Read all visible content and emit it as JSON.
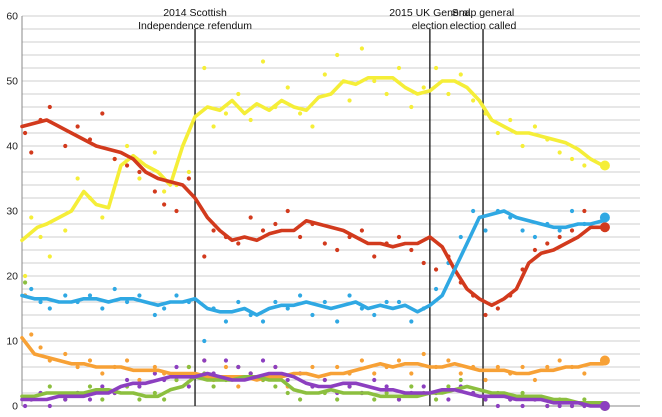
{
  "chart_data": {
    "type": "line",
    "title": "",
    "xlabel": "",
    "ylabel": "",
    "ylim": [
      0,
      60
    ],
    "xlim": [
      0,
      100
    ],
    "yticks": [
      0,
      10,
      20,
      30,
      40,
      50,
      60
    ],
    "grid": true,
    "legend": "none",
    "annotations": [
      {
        "lines": [
          "2014 Scottish",
          "Independence refendum"
        ],
        "x": 28.0
      },
      {
        "lines": [
          "2015 UK General",
          "election"
        ],
        "x": 66.0
      },
      {
        "lines": [
          "Snap general",
          "election called"
        ],
        "x": 74.6
      }
    ],
    "series": [
      {
        "color": "#f5ee38",
        "x": [
          0,
          2.5,
          4,
          6,
          8,
          10,
          12,
          14,
          16,
          18,
          20,
          22,
          24,
          26,
          28,
          30,
          32,
          34,
          36,
          38,
          40,
          42,
          44,
          46,
          48,
          50,
          52,
          54,
          56,
          58,
          60,
          62,
          64,
          66,
          68,
          70,
          72,
          74,
          76,
          78,
          80,
          82,
          84,
          86,
          88,
          90,
          92,
          94
        ],
        "values": [
          25.5,
          27.5,
          28.0,
          29.0,
          30.0,
          33.0,
          31.0,
          30.5,
          37.0,
          38.5,
          37.0,
          36.0,
          34.0,
          40.0,
          44.5,
          46.0,
          45.5,
          47.0,
          45.0,
          46.5,
          45.5,
          47.0,
          46.0,
          45.5,
          47.5,
          48.0,
          50.0,
          49.5,
          50.5,
          50.5,
          50.5,
          49.0,
          48.0,
          48.5,
          50.0,
          50.0,
          49.0,
          47.0,
          44.0,
          43.0,
          42.0,
          42.0,
          41.5,
          41.0,
          40.5,
          39.5,
          38.0,
          37.0
        ],
        "end_value": 37
      },
      {
        "color": "#d23a1d",
        "x": [
          0,
          2,
          4,
          6,
          8,
          10,
          12,
          14,
          16,
          18,
          20,
          22,
          24,
          26,
          28,
          30,
          32,
          34,
          36,
          38,
          40,
          42,
          44,
          46,
          48,
          50,
          52,
          54,
          56,
          58,
          60,
          62,
          64,
          66,
          68,
          70,
          72,
          74,
          76,
          78,
          80,
          82,
          84,
          86,
          88,
          90,
          92,
          94
        ],
        "values": [
          43.0,
          43.5,
          44.0,
          43.0,
          42.0,
          41.0,
          40.0,
          39.5,
          39.0,
          38.0,
          36.0,
          35.0,
          34.5,
          34.0,
          32.0,
          29.0,
          27.0,
          25.5,
          26.0,
          25.5,
          26.5,
          27.0,
          27.0,
          28.5,
          28.0,
          27.5,
          27.0,
          26.0,
          25.0,
          25.0,
          24.5,
          25.0,
          25.0,
          26.0,
          24.5,
          21.0,
          18.0,
          16.5,
          15.5,
          16.5,
          18.0,
          22.0,
          23.5,
          24.0,
          25.0,
          26.0,
          27.5,
          27.5
        ],
        "end_value": 27.5
      },
      {
        "color": "#2fa8e3",
        "x": [
          0,
          2,
          4,
          6,
          8,
          10,
          12,
          14,
          16,
          18,
          20,
          22,
          24,
          26,
          28,
          30,
          32,
          34,
          36,
          38,
          40,
          42,
          44,
          46,
          48,
          50,
          52,
          54,
          56,
          58,
          60,
          62,
          64,
          66,
          68,
          70,
          72,
          74,
          76,
          78,
          80,
          82,
          84,
          86,
          88,
          90,
          92,
          94
        ],
        "values": [
          17.0,
          16.5,
          16.5,
          16.0,
          16.0,
          16.5,
          16.5,
          16.0,
          16.5,
          16.5,
          16.0,
          15.5,
          16.0,
          16.0,
          16.5,
          15.0,
          14.5,
          14.5,
          15.0,
          14.0,
          15.0,
          15.5,
          15.5,
          16.0,
          15.5,
          15.0,
          15.5,
          16.0,
          15.0,
          15.5,
          15.0,
          15.5,
          14.5,
          15.5,
          17.0,
          21.0,
          25.0,
          29.0,
          29.5,
          30.0,
          29.0,
          28.5,
          28.0,
          27.5,
          27.5,
          28.0,
          28.0,
          28.5
        ],
        "end_value": 29
      },
      {
        "color": "#f7a136",
        "x": [
          0,
          2,
          4,
          6,
          8,
          10,
          12,
          14,
          16,
          18,
          20,
          22,
          24,
          26,
          28,
          30,
          32,
          34,
          36,
          38,
          40,
          42,
          44,
          46,
          48,
          50,
          52,
          54,
          56,
          58,
          60,
          62,
          64,
          66,
          68,
          70,
          72,
          74,
          76,
          78,
          80,
          82,
          84,
          86,
          88,
          90,
          92,
          94
        ],
        "values": [
          10.5,
          8.0,
          7.5,
          7.0,
          6.5,
          6.5,
          6.0,
          6.0,
          6.0,
          5.5,
          5.5,
          5.5,
          5.0,
          5.0,
          5.0,
          4.5,
          4.5,
          4.5,
          4.5,
          4.0,
          4.5,
          4.5,
          5.0,
          5.0,
          4.5,
          5.0,
          5.0,
          5.5,
          6.0,
          6.5,
          6.0,
          6.5,
          6.5,
          6.0,
          6.0,
          6.5,
          6.0,
          5.5,
          5.5,
          5.5,
          5.0,
          5.0,
          5.5,
          5.5,
          6.0,
          6.0,
          6.5,
          6.5
        ],
        "end_value": 7
      },
      {
        "color": "#8cbf3f",
        "x": [
          0,
          2,
          4,
          6,
          8,
          10,
          12,
          14,
          16,
          18,
          20,
          22,
          24,
          26,
          28,
          30,
          32,
          34,
          36,
          38,
          40,
          42,
          44,
          46,
          48,
          50,
          52,
          54,
          56,
          58,
          60,
          62,
          64,
          66,
          68,
          70,
          72,
          74,
          76,
          78,
          80,
          82,
          84,
          86,
          88,
          90,
          92,
          94
        ],
        "values": [
          1.5,
          1.5,
          2.0,
          2.0,
          2.0,
          2.0,
          2.5,
          2.5,
          2.0,
          2.0,
          1.5,
          1.5,
          2.5,
          3.0,
          4.5,
          4.0,
          4.0,
          4.0,
          4.5,
          4.5,
          4.0,
          4.0,
          2.5,
          2.0,
          2.0,
          2.5,
          2.0,
          2.0,
          2.0,
          1.5,
          1.5,
          1.5,
          1.5,
          2.0,
          2.0,
          2.5,
          3.0,
          2.5,
          2.0,
          2.0,
          1.5,
          1.5,
          1.5,
          1.0,
          1.0,
          0.5,
          0.5,
          0.5
        ],
        "end_value": 0
      },
      {
        "color": "#8c3fc0",
        "x": [
          0,
          2,
          4,
          6,
          8,
          10,
          12,
          14,
          16,
          18,
          20,
          22,
          24,
          26,
          28,
          30,
          32,
          34,
          36,
          38,
          40,
          42,
          44,
          46,
          48,
          50,
          52,
          54,
          56,
          58,
          60,
          62,
          64,
          66,
          68,
          70,
          72,
          74,
          76,
          78,
          80,
          82,
          84,
          86,
          88,
          90,
          92,
          94
        ],
        "values": [
          1.0,
          1.0,
          1.0,
          1.5,
          1.5,
          1.5,
          2.0,
          2.0,
          3.0,
          3.5,
          3.5,
          4.0,
          4.5,
          4.5,
          4.5,
          5.0,
          4.5,
          4.0,
          4.0,
          4.5,
          5.0,
          5.0,
          4.5,
          3.5,
          3.0,
          3.0,
          3.5,
          3.5,
          3.0,
          2.5,
          2.5,
          2.0,
          2.0,
          2.0,
          2.5,
          2.5,
          2.0,
          1.5,
          1.5,
          1.5,
          1.0,
          1.0,
          1.0,
          0.5,
          0.5,
          0.5,
          0.0,
          0.0
        ],
        "end_value": 0
      }
    ],
    "scatter": [
      {
        "color": "#f5ee38",
        "x": [
          0.5,
          1.5,
          3,
          4.5,
          7,
          9,
          11,
          13,
          15,
          17,
          19,
          21.5,
          23,
          25,
          27,
          29.5,
          31,
          33,
          35,
          37,
          39,
          41,
          43,
          45,
          47,
          49,
          51,
          53,
          55,
          57,
          59,
          61,
          63,
          65,
          67,
          69,
          71,
          73,
          75,
          77,
          79,
          81,
          83,
          85,
          87,
          89,
          91
        ],
        "values": [
          20,
          29,
          26,
          23,
          27,
          35,
          32,
          29,
          38,
          40,
          35,
          39,
          33,
          34,
          36,
          52,
          43,
          45,
          48,
          44,
          53,
          46,
          49,
          45,
          43,
          51,
          54,
          47,
          55,
          50,
          48,
          52,
          46,
          49,
          52,
          48,
          51,
          47,
          45,
          42,
          44,
          40,
          43,
          41,
          39,
          38,
          37
        ]
      },
      {
        "color": "#d23a1d",
        "x": [
          0.5,
          1.5,
          3,
          4.5,
          7,
          9,
          11,
          13,
          15,
          17,
          19,
          21.5,
          23,
          25,
          27,
          29.5,
          31,
          33,
          35,
          37,
          39,
          41,
          43,
          45,
          47,
          49,
          51,
          53,
          55,
          57,
          59,
          61,
          63,
          65,
          67,
          69,
          71,
          73,
          75,
          77,
          79,
          81,
          83,
          85,
          87,
          89,
          91
        ],
        "values": [
          42,
          39,
          44,
          46,
          40,
          43,
          41,
          45,
          38,
          37,
          36,
          33,
          31,
          30,
          35,
          23,
          27,
          26,
          25,
          29,
          27,
          28,
          30,
          26,
          28,
          25,
          24,
          26,
          27,
          23,
          25,
          26,
          24,
          22,
          21,
          23,
          19,
          17,
          14,
          15,
          17,
          21,
          24,
          25,
          26,
          27,
          30
        ]
      },
      {
        "color": "#2fa8e3",
        "x": [
          0.5,
          1.5,
          3,
          4.5,
          7,
          9,
          11,
          13,
          15,
          17,
          19,
          21.5,
          23,
          25,
          27,
          29.5,
          31,
          33,
          35,
          37,
          39,
          41,
          43,
          45,
          47,
          49,
          51,
          53,
          55,
          57,
          59,
          61,
          63,
          65,
          67,
          69,
          71,
          73,
          75,
          77,
          79,
          81,
          83,
          85,
          87,
          89,
          91
        ],
        "values": [
          17,
          18,
          16,
          15,
          17,
          16,
          17,
          15,
          18,
          16,
          17,
          14,
          15,
          17,
          16,
          10,
          15,
          13,
          16,
          14,
          13,
          16,
          15,
          17,
          14,
          16,
          13,
          17,
          15,
          14,
          16,
          16,
          13,
          15,
          18,
          22,
          26,
          30,
          27,
          30,
          29,
          27,
          26,
          28,
          27,
          30,
          28
        ]
      },
      {
        "color": "#f7a136",
        "x": [
          0.5,
          1.5,
          3,
          4.5,
          7,
          9,
          11,
          13,
          15,
          17,
          19,
          21.5,
          23,
          25,
          27,
          29.5,
          31,
          33,
          35,
          37,
          39,
          41,
          43,
          45,
          47,
          49,
          51,
          53,
          55,
          57,
          59,
          61,
          63,
          65,
          67,
          69,
          71,
          73,
          75,
          77,
          79,
          81,
          83,
          85,
          87,
          89,
          91
        ],
        "values": [
          17,
          11,
          9,
          7,
          8,
          6,
          7,
          5,
          6,
          7,
          4,
          6,
          5,
          4,
          6,
          7,
          4,
          6,
          3,
          5,
          4,
          6,
          3,
          5,
          6,
          4,
          6,
          5,
          7,
          5,
          6,
          7,
          5,
          8,
          6,
          7,
          5,
          6,
          4,
          6,
          5,
          6,
          4,
          6,
          7,
          6,
          5
        ]
      },
      {
        "color": "#8cbf3f",
        "x": [
          0.5,
          1.5,
          3,
          4.5,
          7,
          9,
          11,
          13,
          15,
          17,
          19,
          21.5,
          23,
          25,
          27,
          29.5,
          31,
          33,
          35,
          37,
          39,
          41,
          43,
          45,
          47,
          49,
          51,
          53,
          55,
          57,
          59,
          61,
          63,
          65,
          67,
          69,
          71,
          73,
          75,
          77,
          79,
          81,
          83,
          85,
          87,
          89,
          91
        ],
        "values": [
          19,
          1,
          2,
          3,
          1,
          2,
          3,
          1,
          2,
          3,
          1,
          2,
          1,
          4,
          6,
          5,
          3,
          4,
          6,
          5,
          4,
          3,
          2,
          1,
          3,
          2,
          1,
          3,
          2,
          1,
          2,
          1,
          3,
          2,
          1,
          3,
          4,
          2,
          1,
          2,
          1,
          2,
          1,
          0,
          1,
          0,
          1
        ]
      },
      {
        "color": "#8c3fc0",
        "x": [
          0.5,
          1.5,
          3,
          4.5,
          7,
          9,
          11,
          13,
          15,
          17,
          19,
          21.5,
          23,
          25,
          27,
          29.5,
          31,
          33,
          35,
          37,
          39,
          41,
          43,
          45,
          47,
          49,
          51,
          53,
          55,
          57,
          59,
          61,
          63,
          65,
          67,
          69,
          71,
          73,
          75,
          77,
          79,
          81,
          83,
          85,
          87,
          89,
          91
        ],
        "values": [
          0,
          1,
          2,
          0,
          1,
          2,
          1,
          3,
          2,
          4,
          3,
          5,
          4,
          6,
          3,
          7,
          5,
          7,
          6,
          5,
          7,
          6,
          4,
          5,
          3,
          4,
          2,
          3,
          2,
          4,
          3,
          1,
          2,
          3,
          2,
          1,
          3,
          2,
          1,
          0,
          1,
          0,
          1,
          0,
          0,
          0,
          0
        ]
      }
    ]
  }
}
